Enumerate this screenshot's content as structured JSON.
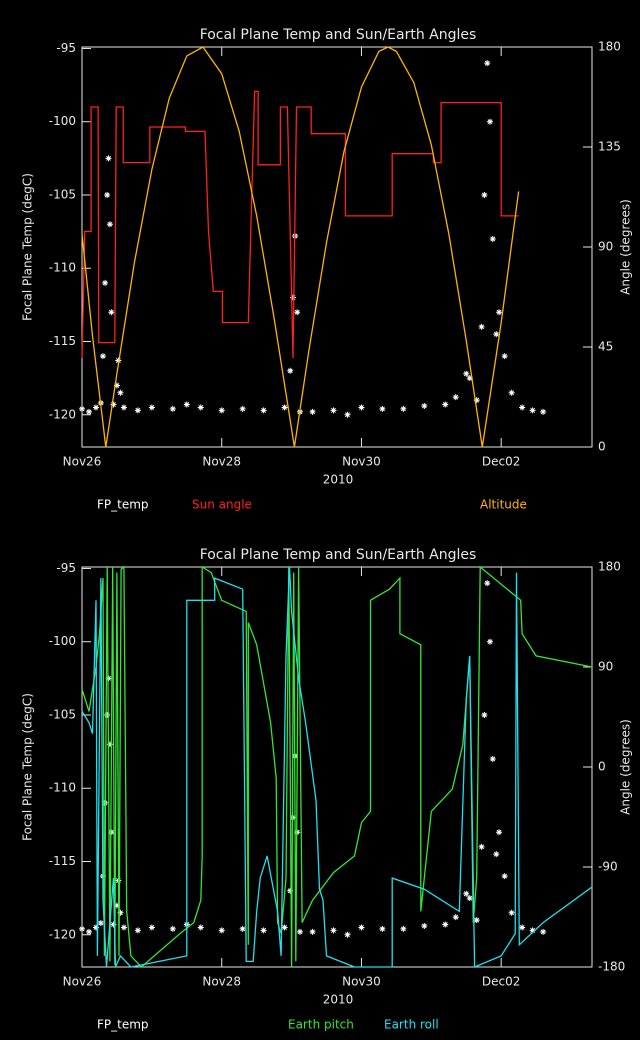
{
  "chart_data": [
    {
      "type": "line",
      "title": "Focal Plane Temp and Sun/Earth Angles",
      "xlabel": "2010",
      "ylabel": "Focal Plane Temp (degC)",
      "y2label": "Angle (degrees)",
      "xlim": [
        0,
        7.3
      ],
      "xticks": [
        {
          "value": 0,
          "label": "Nov26"
        },
        {
          "value": 2,
          "label": "Nov28"
        },
        {
          "value": 4,
          "label": "Nov30"
        },
        {
          "value": 6,
          "label": "Dec02"
        }
      ],
      "ylim": [
        -122.2,
        -94.9
      ],
      "yticks": [
        -120,
        -115,
        -110,
        -105,
        -100,
        -95
      ],
      "y2lim": [
        0,
        180
      ],
      "y2ticks": [
        0,
        45,
        90,
        135,
        180
      ],
      "series": [
        {
          "name": "FP_temp",
          "color": "#ffffff",
          "mode": "markers",
          "axis": "y",
          "x": [
            0,
            0.1,
            0.2,
            0.27,
            0.3,
            0.33,
            0.36,
            0.38,
            0.4,
            0.42,
            0.45,
            0.5,
            0.52,
            0.55,
            0.6,
            0.8,
            1.0,
            1.3,
            1.5,
            1.7,
            2.0,
            2.3,
            2.6,
            2.9,
            2.98,
            3.02,
            3.05,
            3.08,
            3.12,
            3.3,
            3.6,
            3.8,
            4.0,
            4.3,
            4.6,
            4.9,
            5.2,
            5.35,
            5.5,
            5.55,
            5.65,
            5.72,
            5.76,
            5.8,
            5.84,
            5.88,
            5.93,
            5.97,
            6.05,
            6.15,
            6.3,
            6.45,
            6.6
          ],
          "values": [
            -119.6,
            -119.8,
            -119.5,
            -119.2,
            -116,
            -111,
            -105,
            -102.5,
            -107,
            -113,
            -119.3,
            -118,
            -116.3,
            -118.5,
            -119.5,
            -119.7,
            -119.5,
            -119.6,
            -119.3,
            -119.5,
            -119.7,
            -119.6,
            -119.7,
            -119.5,
            -117,
            -112,
            -107.8,
            -113,
            -119.8,
            -119.8,
            -119.7,
            -120,
            -119.5,
            -119.6,
            -119.6,
            -119.4,
            -119.3,
            -118.8,
            -117.2,
            -117.5,
            -119,
            -114,
            -105,
            -96,
            -100,
            -108,
            -114.5,
            -113,
            -116,
            -118.5,
            -119.5,
            -119.7,
            -119.8
          ]
        },
        {
          "name": "Sun angle",
          "color": "#ff2020",
          "mode": "lines",
          "axis": "y2",
          "x": [
            0,
            0.04,
            0.13,
            0.13,
            0.23,
            0.24,
            0.47,
            0.49,
            0.59,
            0.59,
            0.97,
            0.97,
            1.48,
            1.48,
            1.76,
            1.81,
            1.88,
            2.01,
            2.01,
            2.38,
            2.47,
            2.52,
            2.52,
            2.84,
            2.84,
            2.94,
            3.02,
            3.07,
            3.28,
            3.28,
            3.77,
            3.77,
            4.16,
            4.16,
            4.44,
            4.44,
            5.03,
            5.03,
            5.14,
            5.14,
            6.0,
            6.0,
            6.25
          ],
          "values": [
            40,
            97,
            97,
            153,
            153,
            47,
            47,
            153,
            153,
            128,
            128,
            144,
            144,
            142,
            142,
            97,
            70,
            70,
            56,
            56,
            160,
            160,
            127,
            127,
            153,
            153,
            40,
            153,
            153,
            141,
            141,
            104,
            104,
            104,
            104,
            132,
            132,
            128,
            128,
            155,
            155,
            104,
            104
          ]
        },
        {
          "name": "Altitude",
          "color": "#ffb400",
          "mode": "lines",
          "axis": "y2",
          "x": [
            0,
            0.15,
            0.34,
            0.5,
            0.75,
            1.0,
            1.25,
            1.5,
            1.73,
            2.0,
            2.25,
            2.5,
            2.75,
            3.04,
            3.25,
            3.5,
            3.75,
            4.0,
            4.25,
            4.38,
            4.5,
            4.75,
            5.0,
            5.25,
            5.5,
            5.73,
            6.0,
            6.25
          ],
          "values": [
            96,
            50,
            0,
            33,
            83,
            125,
            157,
            176,
            180,
            168,
            142,
            104,
            58,
            0,
            44,
            92,
            133,
            162,
            178,
            180,
            178,
            164,
            136,
            96,
            48,
            0,
            56,
            115
          ]
        }
      ]
    },
    {
      "type": "line",
      "title": "Focal Plane Temp and Sun/Earth Angles",
      "xlabel": "2010",
      "ylabel": "Focal Plane Temp (degC)",
      "y2label": "Angle (degrees)",
      "xlim": [
        0,
        7.3
      ],
      "xticks": [
        {
          "value": 0,
          "label": "Nov26"
        },
        {
          "value": 2,
          "label": "Nov28"
        },
        {
          "value": 4,
          "label": "Nov30"
        },
        {
          "value": 6,
          "label": "Dec02"
        }
      ],
      "ylim": [
        -122.2,
        -94.9
      ],
      "yticks": [
        -120,
        -115,
        -110,
        -105,
        -100,
        -95
      ],
      "y2lim": [
        -180,
        180
      ],
      "y2ticks": [
        -180,
        -90,
        0,
        90,
        180
      ],
      "series": [
        {
          "name": "FP_temp",
          "color": "#ffffff",
          "mode": "markers",
          "axis": "y",
          "x": [
            0,
            0.1,
            0.2,
            0.27,
            0.3,
            0.33,
            0.36,
            0.38,
            0.4,
            0.42,
            0.45,
            0.5,
            0.52,
            0.55,
            0.6,
            0.8,
            1.0,
            1.3,
            1.5,
            1.7,
            2.0,
            2.3,
            2.6,
            2.9,
            2.98,
            3.02,
            3.05,
            3.08,
            3.12,
            3.3,
            3.6,
            3.8,
            4.0,
            4.3,
            4.6,
            4.9,
            5.2,
            5.35,
            5.5,
            5.55,
            5.65,
            5.72,
            5.76,
            5.8,
            5.84,
            5.88,
            5.93,
            5.97,
            6.05,
            6.15,
            6.3,
            6.45,
            6.6
          ],
          "values": [
            -119.6,
            -119.8,
            -119.5,
            -119.2,
            -116,
            -111,
            -105,
            -102.5,
            -107,
            -113,
            -119.3,
            -118,
            -116.3,
            -118.5,
            -119.5,
            -119.7,
            -119.5,
            -119.6,
            -119.3,
            -119.5,
            -119.7,
            -119.6,
            -119.7,
            -119.5,
            -117,
            -112,
            -107.8,
            -113,
            -119.8,
            -119.8,
            -119.7,
            -120,
            -119.5,
            -119.6,
            -119.6,
            -119.4,
            -119.3,
            -118.8,
            -117.2,
            -117.5,
            -119,
            -114,
            -105,
            -96,
            -100,
            -108,
            -114.5,
            -113,
            -116,
            -118.5,
            -119.5,
            -119.7,
            -119.8
          ]
        },
        {
          "name": "Earth pitch",
          "color": "#33e633",
          "mode": "lines",
          "axis": "y2",
          "x": [
            0,
            0.1,
            0.2,
            0.25,
            0.3,
            0.32,
            0.36,
            0.4,
            0.44,
            0.47,
            0.5,
            0.53,
            0.56,
            0.6,
            0.64,
            0.7,
            0.85,
            1.4,
            1.6,
            1.7,
            1.72,
            1.72,
            1.85,
            2.0,
            2.35,
            2.38,
            2.38,
            2.5,
            2.7,
            2.78,
            2.8,
            2.85,
            2.92,
            2.96,
            3.0,
            3.03,
            3.06,
            3.1,
            3.15,
            3.3,
            3.6,
            3.9,
            4.0,
            4.13,
            4.13,
            4.4,
            4.55,
            4.55,
            4.85,
            4.85,
            5.0,
            5.3,
            5.45,
            5.55,
            5.6,
            5.65,
            5.7,
            6.28,
            6.3,
            6.5,
            7.3
          ],
          "values": [
            70,
            50,
            90,
            120,
            170,
            -170,
            180,
            -175,
            180,
            -178,
            175,
            -170,
            178,
            180,
            -130,
            -170,
            -180,
            -150,
            -140,
            -120,
            -80,
            180,
            175,
            150,
            140,
            -160,
            130,
            110,
            40,
            -10,
            -140,
            -150,
            -100,
            180,
            -180,
            175,
            -175,
            180,
            -140,
            -120,
            -95,
            -80,
            -50,
            -40,
            150,
            160,
            170,
            120,
            110,
            -130,
            -40,
            -20,
            20,
            100,
            -140,
            -100,
            180,
            150,
            120,
            100,
            90
          ]
        },
        {
          "name": "Earth roll",
          "color": "#20e0f0",
          "mode": "lines",
          "axis": "y2",
          "x": [
            0,
            0.1,
            0.15,
            0.2,
            0.22,
            0.27,
            0.3,
            0.35,
            0.45,
            0.48,
            0.55,
            0.7,
            1.5,
            1.5,
            1.9,
            1.9,
            2.3,
            2.35,
            2.45,
            2.5,
            2.55,
            2.65,
            2.8,
            2.85,
            2.92,
            2.97,
            3.0,
            3.1,
            3.2,
            3.35,
            3.4,
            3.45,
            3.5,
            3.9,
            4.2,
            4.44,
            4.44,
            4.9,
            5.4,
            5.5,
            5.55,
            5.62,
            6.0,
            6.2,
            6.22,
            6.26,
            6.6,
            7.3
          ],
          "values": [
            50,
            40,
            30,
            150,
            -170,
            170,
            -120,
            -180,
            -100,
            -180,
            -170,
            -180,
            -170,
            150,
            150,
            170,
            160,
            -175,
            -175,
            -130,
            -100,
            -80,
            -130,
            -170,
            100,
            180,
            140,
            80,
            40,
            -30,
            -110,
            -120,
            -170,
            -180,
            -180,
            -180,
            -100,
            -110,
            -130,
            60,
            100,
            -180,
            -170,
            -150,
            175,
            -160,
            -140,
            -108
          ]
        }
      ]
    }
  ]
}
